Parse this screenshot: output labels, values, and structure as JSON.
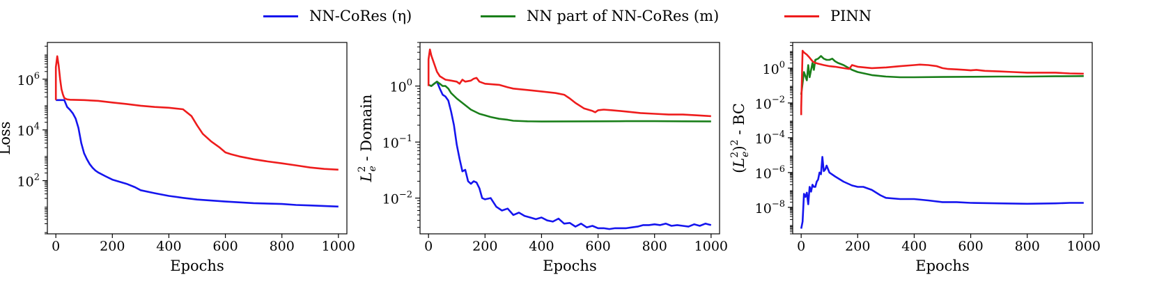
{
  "legend": [
    {
      "label": "NN-CoRes (η)",
      "color": "#1515ee"
    },
    {
      "label": "NN part of NN-CoRes (m)",
      "color": "#1a7f1a"
    },
    {
      "label": "PINN",
      "color": "#ee1c1c"
    }
  ],
  "chart_data": [
    {
      "type": "line",
      "xlabel": "Epochs",
      "ylabel": "Loss",
      "yscale": "log",
      "xlim": [
        -30,
        1030
      ],
      "ylim": [
        0.8,
        28000000.0
      ],
      "xticks": [
        0,
        200,
        400,
        600,
        800,
        1000
      ],
      "yticks": [
        {
          "value": 100,
          "label": "10^2"
        },
        {
          "value": 10000,
          "label": "10^4"
        },
        {
          "value": 1000000,
          "label": "10^6"
        }
      ],
      "grid": false,
      "series": [
        {
          "name": "NN-CoRes (η)",
          "color": "#1515ee",
          "x": [
            0,
            10,
            30,
            40,
            50,
            60,
            70,
            80,
            90,
            100,
            110,
            120,
            130,
            140,
            150,
            175,
            200,
            250,
            280,
            300,
            350,
            400,
            450,
            500,
            600,
            700,
            800,
            850,
            900,
            1000
          ],
          "y": [
            150000,
            150000,
            150000,
            80000,
            62000,
            45000,
            28000,
            12000,
            3000,
            1200,
            700,
            450,
            320,
            250,
            210,
            150,
            110,
            75,
            55,
            42,
            32,
            25,
            21,
            18,
            15,
            13,
            12,
            11,
            10.5,
            9.5
          ]
        },
        {
          "name": "PINN",
          "color": "#ee1c1c",
          "x": [
            0,
            0,
            5,
            10,
            15,
            20,
            25,
            30,
            40,
            50,
            100,
            150,
            200,
            250,
            300,
            350,
            400,
            450,
            480,
            500,
            520,
            550,
            580,
            600,
            620,
            650,
            700,
            750,
            800,
            850,
            900,
            950,
            1000
          ],
          "y": [
            150000,
            3000000,
            8000000,
            3500000,
            1000000,
            400000,
            250000,
            180000,
            160000,
            155000,
            150000,
            140000,
            120000,
            105000,
            90000,
            80000,
            75000,
            65000,
            35000,
            15000,
            7000,
            3500,
            2000,
            1300,
            1100,
            900,
            700,
            570,
            480,
            400,
            330,
            290,
            270
          ]
        }
      ]
    },
    {
      "type": "line",
      "xlabel": "Epochs",
      "ylabel": "L_e^2 - Domain",
      "yscale": "log",
      "xlim": [
        -30,
        1030
      ],
      "ylim": [
        0.0023,
        6
      ],
      "xticks": [
        0,
        200,
        400,
        600,
        800,
        1000
      ],
      "yticks": [
        {
          "value": 0.01,
          "label": "10^-2"
        },
        {
          "value": 0.1,
          "label": "10^-1"
        },
        {
          "value": 1,
          "label": "10^0"
        }
      ],
      "grid": false,
      "series": [
        {
          "name": "NN-CoRes (η)",
          "color": "#1515ee",
          "x": [
            0,
            10,
            20,
            30,
            40,
            50,
            60,
            70,
            80,
            90,
            100,
            110,
            120,
            130,
            140,
            150,
            160,
            170,
            180,
            190,
            200,
            220,
            240,
            260,
            280,
            300,
            320,
            340,
            360,
            380,
            400,
            420,
            440,
            460,
            480,
            500,
            520,
            540,
            560,
            580,
            600,
            620,
            640,
            660,
            680,
            700,
            720,
            740,
            760,
            780,
            800,
            820,
            840,
            860,
            880,
            900,
            920,
            940,
            960,
            980,
            1000
          ],
          "y": [
            1.05,
            1.0,
            1.1,
            1.2,
            0.9,
            0.7,
            0.65,
            0.55,
            0.35,
            0.2,
            0.09,
            0.05,
            0.03,
            0.032,
            0.02,
            0.018,
            0.02,
            0.019,
            0.015,
            0.01,
            0.0095,
            0.01,
            0.007,
            0.006,
            0.0065,
            0.005,
            0.0055,
            0.0048,
            0.0045,
            0.0042,
            0.0045,
            0.004,
            0.0038,
            0.0043,
            0.0035,
            0.0036,
            0.0031,
            0.0035,
            0.003,
            0.0032,
            0.0029,
            0.0029,
            0.0028,
            0.0029,
            0.0029,
            0.0029,
            0.003,
            0.0031,
            0.0033,
            0.0033,
            0.0034,
            0.0033,
            0.0035,
            0.0032,
            0.0033,
            0.0032,
            0.0031,
            0.0034,
            0.0032,
            0.0035,
            0.0033
          ]
        },
        {
          "name": "NN part of NN-CoRes (m)",
          "color": "#1a7f1a",
          "x": [
            0,
            10,
            20,
            30,
            40,
            50,
            60,
            70,
            80,
            100,
            120,
            150,
            180,
            200,
            220,
            250,
            280,
            300,
            350,
            400,
            500,
            600,
            700,
            800,
            900,
            1000
          ],
          "y": [
            1.05,
            1.0,
            1.1,
            1.2,
            1.1,
            1.0,
            1.0,
            0.9,
            0.75,
            0.6,
            0.5,
            0.38,
            0.32,
            0.3,
            0.28,
            0.26,
            0.25,
            0.24,
            0.235,
            0.233,
            0.234,
            0.235,
            0.236,
            0.236,
            0.235,
            0.234
          ]
        },
        {
          "name": "PINN",
          "color": "#ee1c1c",
          "x": [
            0,
            0,
            5,
            10,
            20,
            30,
            40,
            60,
            80,
            100,
            110,
            120,
            130,
            150,
            160,
            170,
            180,
            190,
            200,
            250,
            280,
            300,
            350,
            400,
            450,
            480,
            500,
            520,
            550,
            580,
            590,
            600,
            620,
            650,
            700,
            750,
            800,
            850,
            900,
            950,
            1000
          ],
          "y": [
            1.0,
            3.0,
            4.5,
            3.5,
            2.5,
            1.8,
            1.5,
            1.3,
            1.25,
            1.2,
            1.1,
            1.3,
            1.2,
            1.25,
            1.35,
            1.4,
            1.2,
            1.15,
            1.1,
            1.05,
            0.95,
            0.9,
            0.85,
            0.8,
            0.75,
            0.7,
            0.6,
            0.5,
            0.4,
            0.36,
            0.34,
            0.37,
            0.38,
            0.37,
            0.35,
            0.33,
            0.32,
            0.31,
            0.31,
            0.3,
            0.29
          ]
        }
      ]
    },
    {
      "type": "line",
      "xlabel": "Epochs",
      "ylabel": "(L_e^2)^2 - BC",
      "yscale": "log",
      "xlim": [
        -30,
        1030
      ],
      "ylim": [
        3e-10,
        30
      ],
      "xticks": [
        0,
        200,
        400,
        600,
        800,
        1000
      ],
      "yticks": [
        {
          "value": 1e-08,
          "label": "10^-8"
        },
        {
          "value": 1e-06,
          "label": "10^-6"
        },
        {
          "value": 0.0001,
          "label": "10^-4"
        },
        {
          "value": 0.01,
          "label": "10^-2"
        },
        {
          "value": 1,
          "label": "10^0"
        }
      ],
      "grid": false,
      "series": [
        {
          "name": "NN-CoRes (η)",
          "color": "#1515ee",
          "x": [
            0,
            5,
            10,
            15,
            20,
            25,
            30,
            35,
            40,
            45,
            50,
            55,
            60,
            65,
            70,
            75,
            80,
            85,
            90,
            100,
            120,
            150,
            180,
            200,
            220,
            250,
            280,
            300,
            350,
            400,
            450,
            500,
            550,
            600,
            700,
            800,
            900,
            950,
            1000
          ],
          "y": [
            6e-10,
            1.5e-09,
            6e-08,
            4e-08,
            7e-08,
            1.5e-08,
            1.5e-07,
            8e-08,
            2e-07,
            1.5e-07,
            1.5e-07,
            3e-07,
            4e-07,
            1e-06,
            8e-07,
            8e-06,
            1.2e-06,
            1.5e-06,
            2.5e-06,
            1e-06,
            6e-07,
            3e-07,
            1.8e-07,
            1.5e-07,
            1.5e-07,
            1e-07,
            5e-08,
            3.5e-08,
            3e-08,
            3e-08,
            2.5e-08,
            2e-08,
            2e-08,
            1.8e-08,
            1.7e-08,
            1.6e-08,
            1.7e-08,
            1.8e-08,
            1.8e-08
          ]
        },
        {
          "name": "NN part of NN-CoRes (m)",
          "color": "#1a7f1a",
          "x": [
            0,
            10,
            20,
            25,
            30,
            40,
            45,
            50,
            60,
            70,
            80,
            90,
            100,
            110,
            120,
            130,
            150,
            180,
            200,
            250,
            300,
            350,
            400,
            500,
            600,
            700,
            800,
            900,
            1000
          ],
          "y": [
            0.03,
            0.6,
            0.2,
            1.5,
            0.3,
            2.0,
            0.8,
            3.0,
            3.5,
            5.0,
            3.5,
            3.0,
            3.0,
            3.5,
            2.5,
            2.0,
            1.5,
            0.8,
            0.6,
            0.4,
            0.33,
            0.3,
            0.3,
            0.31,
            0.32,
            0.33,
            0.33,
            0.34,
            0.35
          ]
        },
        {
          "name": "PINN",
          "color": "#ee1c1c",
          "x": [
            0,
            0,
            5,
            10,
            20,
            30,
            40,
            50,
            60,
            80,
            100,
            120,
            150,
            170,
            180,
            200,
            250,
            300,
            350,
            400,
            420,
            450,
            480,
            500,
            520,
            550,
            580,
            600,
            620,
            650,
            700,
            750,
            800,
            850,
            900,
            950,
            1000
          ],
          "y": [
            0.002,
            0.005,
            10.0,
            8.0,
            6.0,
            4.0,
            2.5,
            2.0,
            1.8,
            1.5,
            1.3,
            1.2,
            1.0,
            0.9,
            1.5,
            1.2,
            1.0,
            1.1,
            1.3,
            1.5,
            1.6,
            1.5,
            1.3,
            1.0,
            0.9,
            0.85,
            0.8,
            0.75,
            0.8,
            0.7,
            0.65,
            0.6,
            0.55,
            0.55,
            0.55,
            0.5,
            0.48
          ]
        }
      ]
    }
  ]
}
